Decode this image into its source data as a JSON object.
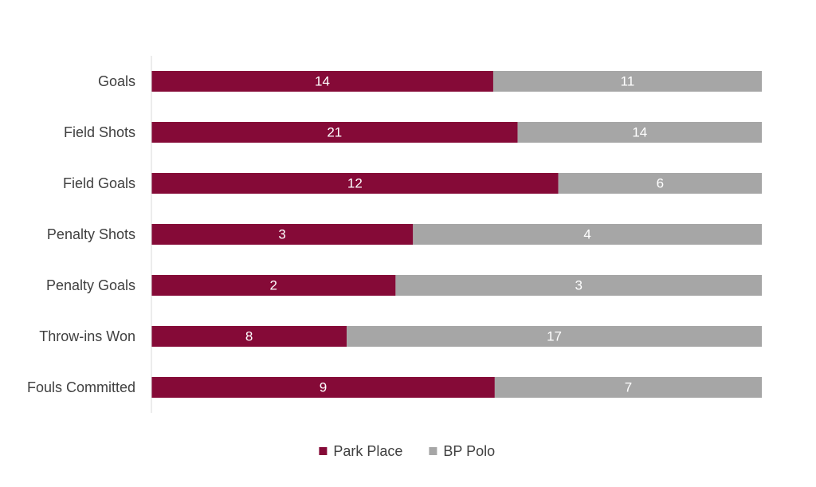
{
  "chart_data": {
    "type": "bar",
    "orientation": "horizontal",
    "stacked": "percent",
    "categories": [
      "Goals",
      "Field Shots",
      "Field Goals",
      "Penalty Shots",
      "Penalty Goals",
      "Throw-ins Won",
      "Fouls Committed"
    ],
    "series": [
      {
        "name": "Park Place",
        "color": "#850a37",
        "values": [
          14,
          21,
          12,
          3,
          2,
          8,
          9
        ]
      },
      {
        "name": "BP Polo",
        "color": "#a6a6a6",
        "values": [
          11,
          14,
          6,
          4,
          3,
          17,
          7
        ]
      }
    ],
    "title": "",
    "xlabel": "",
    "ylabel": "",
    "grid": false,
    "legend_position": "bottom",
    "data_labels": true
  }
}
